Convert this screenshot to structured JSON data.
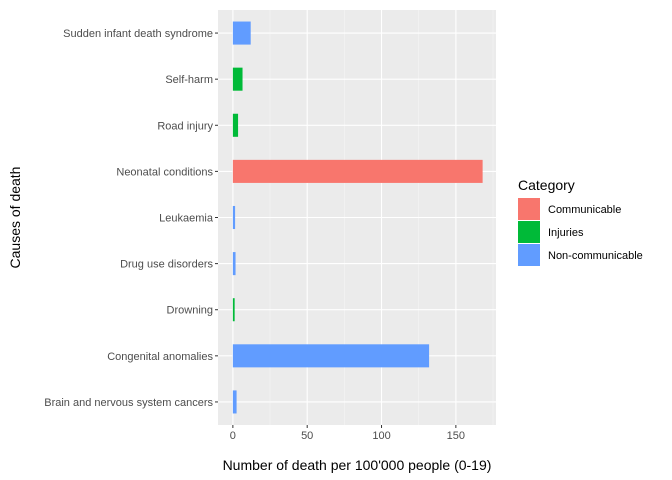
{
  "chart_data": {
    "type": "bar",
    "orientation": "horizontal",
    "xlabel": "Number of death per 100'000 people (0-19)",
    "ylabel": "Causes of death",
    "xlim": [
      -10,
      177
    ],
    "xticks": [
      0,
      50,
      100,
      150
    ],
    "grid": true,
    "legend": {
      "title": "Category",
      "placement": "right",
      "entries": [
        {
          "name": "Communicable",
          "color": "#F8766D"
        },
        {
          "name": "Injuries",
          "color": "#00BA38"
        },
        {
          "name": "Non-communicable",
          "color": "#619CFF"
        }
      ]
    },
    "categories": [
      "Brain and nervous system cancers",
      "Congenital anomalies",
      "Drowning",
      "Drug use disorders",
      "Leukaemia",
      "Neonatal conditions",
      "Road injury",
      "Self-harm",
      "Sudden infant death syndrome"
    ],
    "bars": [
      {
        "cause": "Brain and nervous system cancers",
        "value": 2.5,
        "category": "Non-communicable"
      },
      {
        "cause": "Congenital anomalies",
        "value": 132,
        "category": "Non-communicable"
      },
      {
        "cause": "Drowning",
        "value": 1.2,
        "category": "Injuries"
      },
      {
        "cause": "Drug use disorders",
        "value": 1.8,
        "category": "Non-communicable"
      },
      {
        "cause": "Leukaemia",
        "value": 1.5,
        "category": "Non-communicable"
      },
      {
        "cause": "Neonatal conditions",
        "value": 168,
        "category": "Communicable"
      },
      {
        "cause": "Road injury",
        "value": 3.5,
        "category": "Injuries"
      },
      {
        "cause": "Self-harm",
        "value": 6.5,
        "category": "Injuries"
      },
      {
        "cause": "Sudden infant death syndrome",
        "value": 12,
        "category": "Non-communicable"
      }
    ]
  }
}
